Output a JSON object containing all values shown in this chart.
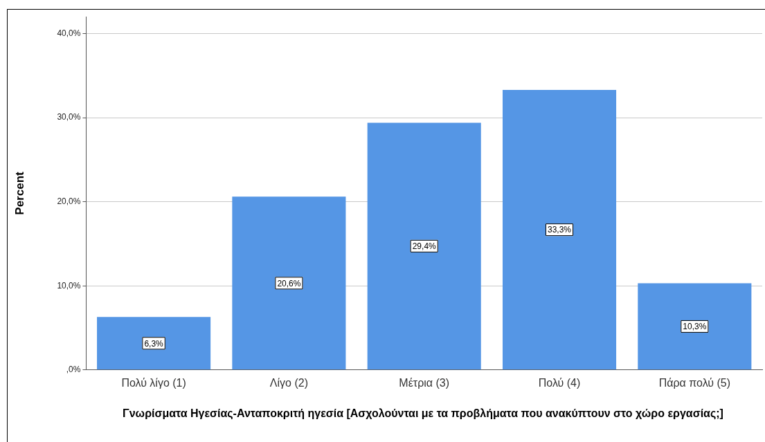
{
  "chart_data": {
    "type": "bar",
    "xlabel": "Γνωρίσματα Ηγεσίας-Ανταποκριτή ηγεσία [Ασχολούνται με τα προβλήματα που ανακύπτουν στο χώρο εργασίας;]",
    "ylabel": "Percent",
    "categories": [
      "Πολύ λίγο (1)",
      "Λίγο (2)",
      "Μέτρια (3)",
      "Πολύ (4)",
      "Πάρα πολύ (5)"
    ],
    "values": [
      6.3,
      20.6,
      29.4,
      33.3,
      10.3
    ],
    "value_labels": [
      "6,3%",
      "20,6%",
      "29,4%",
      "33,3%",
      "10,3%"
    ],
    "color": "#5596e5",
    "ylim": [
      0,
      42
    ],
    "yticks": [
      {
        "value": 0,
        "label": ",0%"
      },
      {
        "value": 10,
        "label": "10,0%"
      },
      {
        "value": 20,
        "label": "20,0%"
      },
      {
        "value": 30,
        "label": "30,0%"
      },
      {
        "value": 40,
        "label": "40,0%"
      }
    ],
    "grid": "y",
    "legend": false
  }
}
